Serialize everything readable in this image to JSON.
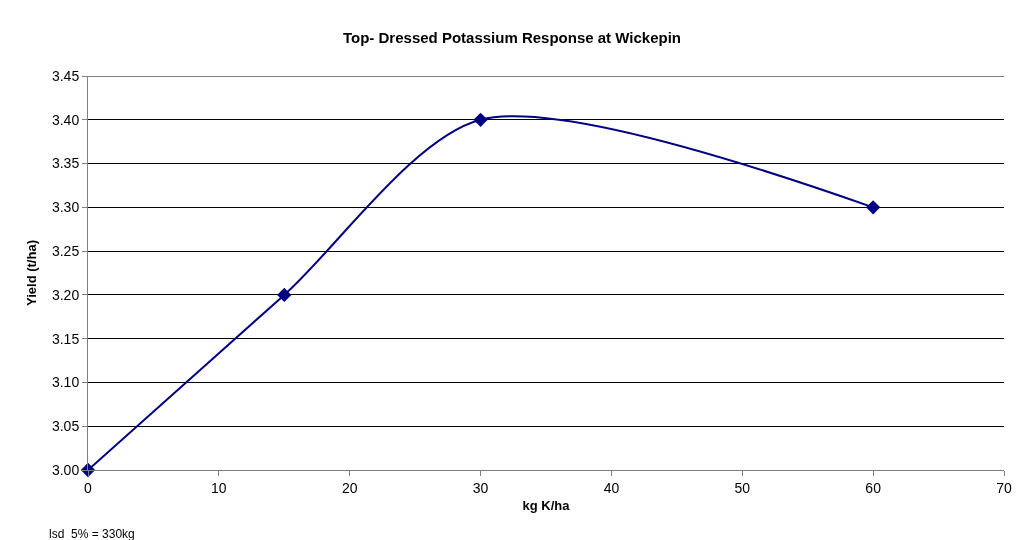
{
  "chart_data": {
    "type": "line",
    "title": "Top- Dressed Potassium Response at Wickepin",
    "xlabel": "kg K/ha",
    "ylabel": "Yield (t/ha)",
    "x": [
      0,
      15,
      30,
      60
    ],
    "series": [
      {
        "color": "#000080",
        "values": [
          3.0,
          3.2,
          3.4,
          3.3
        ]
      }
    ],
    "xlim": [
      0,
      70
    ],
    "xticks": [
      0,
      10,
      20,
      30,
      40,
      50,
      60,
      70
    ],
    "ylim": [
      3.0,
      3.45
    ],
    "yticks": [
      {
        "value": 3.0,
        "label": "3.00"
      },
      {
        "value": 3.05,
        "label": "3.05"
      },
      {
        "value": 3.1,
        "label": "3.10"
      },
      {
        "value": 3.15,
        "label": "3.15"
      },
      {
        "value": 3.2,
        "label": "3.20"
      },
      {
        "value": 3.25,
        "label": "3.25"
      },
      {
        "value": 3.3,
        "label": "3.30"
      },
      {
        "value": 3.35,
        "label": "3.35"
      },
      {
        "value": 3.4,
        "label": "3.40"
      },
      {
        "value": 3.45,
        "label": "3.45"
      }
    ],
    "grid": "y",
    "marker": "diamond",
    "line_style": "solid",
    "annotations": [
      "lsd  5% = 330kg"
    ]
  }
}
